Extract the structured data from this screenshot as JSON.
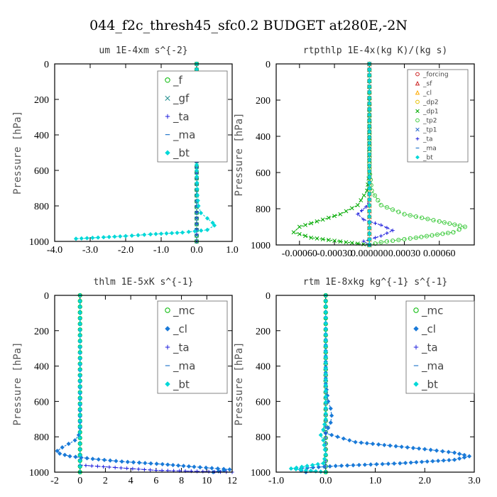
{
  "figure": {
    "suptitle": "044_f2c_thresh45_sfc0.2  BUDGET at280E,-2N"
  },
  "chart_data": [
    {
      "type": "line",
      "title": "um   1E-4xm s^{-2}",
      "xlabel": "",
      "ylabel": "Pressure [hPa]",
      "xlim": [
        -4.0,
        1.0
      ],
      "ylim": [
        1000,
        0
      ],
      "xticks": [
        "-4.0",
        "-3.0",
        "-2.0",
        "-1.0",
        "0.0",
        "1.0"
      ],
      "xtick_values": [
        -4,
        -3,
        -2,
        -1,
        0,
        1
      ],
      "yticks": [
        "0",
        "200",
        "400",
        "600",
        "800",
        "1000"
      ],
      "ytick_values": [
        0,
        200,
        400,
        600,
        800,
        1000
      ],
      "legend": "top-right",
      "legend_font": 15,
      "series": [
        {
          "name": "_f",
          "color": "#00b800",
          "marker": "circle",
          "x": [
            0,
            0
          ],
          "y": [
            0,
            1000
          ]
        },
        {
          "name": "_gf",
          "color": "#1a8a8a",
          "marker": "x",
          "x": [
            0,
            0
          ],
          "y": [
            0,
            1000
          ]
        },
        {
          "name": "_ta",
          "color": "#2020dd",
          "marker": "plus",
          "x": [
            0,
            0,
            0,
            0,
            0,
            0
          ],
          "y": [
            0,
            400,
            800,
            900,
            960,
            1000
          ]
        },
        {
          "name": "_ma",
          "color": "#2a7acc",
          "marker": "dash",
          "x": [
            0,
            0
          ],
          "y": [
            0,
            1000
          ]
        },
        {
          "name": "_bt",
          "color": "#00d8d8",
          "marker": "diamond",
          "x": [
            0.0,
            0.0,
            0.02,
            0.05,
            0.12,
            0.3,
            0.45,
            0.5,
            0.3,
            -0.4,
            -1.3,
            -2.0,
            -3.4
          ],
          "y": [
            0,
            600,
            740,
            800,
            840,
            870,
            895,
            910,
            935,
            950,
            960,
            970,
            985
          ]
        }
      ]
    },
    {
      "type": "line",
      "title": "rtpthlp   1E-4x(kg K)/(kg s)",
      "xlabel": "",
      "ylabel": "Pressure [hPa]",
      "xlim": [
        -0.0008,
        0.0009
      ],
      "ylim": [
        1000,
        0
      ],
      "xticks": [
        "-0.00060",
        "-0.00030",
        "0.000000",
        "0.00030",
        "0.00060"
      ],
      "xtick_values": [
        -0.0006,
        -0.0003,
        0.0,
        0.0003,
        0.0006
      ],
      "yticks": [
        "0",
        "200",
        "400",
        "600",
        "800",
        "1000"
      ],
      "ytick_values": [
        0,
        200,
        400,
        600,
        800,
        1000
      ],
      "legend": "top-right",
      "legend_font": 9,
      "series": [
        {
          "name": "_forcing",
          "color": "#cc2222",
          "marker": "circle",
          "x": [
            0,
            0
          ],
          "y": [
            0,
            1000
          ]
        },
        {
          "name": "_sf",
          "color": "#cc2222",
          "marker": "triangle",
          "x": [
            0,
            0
          ],
          "y": [
            0,
            1000
          ]
        },
        {
          "name": "_cl",
          "color": "#ffaa00",
          "marker": "triangle",
          "x": [
            0,
            0
          ],
          "y": [
            0,
            1000
          ]
        },
        {
          "name": "_dp2",
          "color": "#e6c000",
          "marker": "circle",
          "x": [
            0,
            0
          ],
          "y": [
            0,
            1000
          ]
        },
        {
          "name": "_dp1",
          "color": "#00aa00",
          "marker": "x",
          "x": [
            0.0,
            0.0,
            -2e-05,
            -0.0001,
            -0.00025,
            -0.00045,
            -0.0006,
            -0.00065,
            -0.0005,
            -0.0002,
            0.0
          ],
          "y": [
            0,
            600,
            700,
            780,
            830,
            870,
            900,
            930,
            960,
            985,
            1000
          ]
        },
        {
          "name": "_tp2",
          "color": "#44cc44",
          "marker": "circle",
          "x": [
            0.0,
            0.0,
            2e-05,
            0.0001,
            0.0003,
            0.0006,
            0.00082,
            0.00072,
            0.0004,
            0.0001,
            0.0
          ],
          "y": [
            0,
            580,
            700,
            780,
            830,
            870,
            900,
            930,
            960,
            985,
            1000
          ]
        },
        {
          "name": "_tp1",
          "color": "#2a6acc",
          "marker": "x",
          "x": [
            0,
            0
          ],
          "y": [
            0,
            1000
          ]
        },
        {
          "name": "_ta",
          "color": "#2020dd",
          "marker": "plus",
          "x": [
            0.0,
            0.0,
            -3e-05,
            -0.0001,
            -5e-05,
            0.0001,
            0.0002,
            0.0001,
            -5e-05,
            0.0
          ],
          "y": [
            0,
            750,
            790,
            830,
            860,
            890,
            920,
            950,
            980,
            1000
          ]
        },
        {
          "name": "_ma",
          "color": "#2a7acc",
          "marker": "dash",
          "x": [
            0,
            0
          ],
          "y": [
            0,
            1000
          ]
        },
        {
          "name": "_bt",
          "color": "#00d8d8",
          "marker": "diamond",
          "x": [
            0,
            0
          ],
          "y": [
            0,
            1000
          ]
        }
      ]
    },
    {
      "type": "line",
      "title": "thlm   1E-5xK s^{-1}",
      "xlabel": "",
      "ylabel": "Pressure [hPa]",
      "xlim": [
        -2,
        12
      ],
      "ylim": [
        1000,
        0
      ],
      "xticks": [
        "-2",
        "0",
        "2",
        "4",
        "6",
        "8",
        "10",
        "12"
      ],
      "xtick_values": [
        -2,
        0,
        2,
        4,
        6,
        8,
        10,
        12
      ],
      "yticks": [
        "0",
        "200",
        "400",
        "600",
        "800",
        "1000"
      ],
      "ytick_values": [
        0,
        200,
        400,
        600,
        800,
        1000
      ],
      "legend": "top-right",
      "legend_font": 15,
      "series": [
        {
          "name": "_mc",
          "color": "#00b800",
          "marker": "circle",
          "x": [
            0,
            0
          ],
          "y": [
            0,
            1000
          ]
        },
        {
          "name": "_cl",
          "color": "#1a7ad8",
          "marker": "diamond",
          "x": [
            0.0,
            0.0,
            -0.1,
            -0.4,
            -0.9,
            -1.4,
            -1.8,
            -1.6,
            -0.8,
            1.0,
            3.3,
            6.5,
            9.0,
            11.8,
            10.5
          ],
          "y": [
            0,
            750,
            790,
            820,
            840,
            860,
            880,
            895,
            910,
            925,
            940,
            955,
            970,
            985,
            1000
          ]
        },
        {
          "name": "_ta",
          "color": "#2020dd",
          "marker": "plus",
          "x": [
            0,
            0,
            0,
            6,
            12
          ],
          "y": [
            0,
            900,
            960,
            990,
            1000
          ]
        },
        {
          "name": "_ma",
          "color": "#2a7acc",
          "marker": "dash",
          "x": [
            0,
            0
          ],
          "y": [
            0,
            1000
          ]
        },
        {
          "name": "_bt",
          "color": "#00d8d8",
          "marker": "diamond",
          "x": [
            0,
            0
          ],
          "y": [
            0,
            1000
          ]
        }
      ]
    },
    {
      "type": "line",
      "title": "rtm   1E-8xkg kg^{-1} s^{-1}",
      "xlabel": "",
      "ylabel": "Pressure [hPa]",
      "xlim": [
        -1.0,
        3.0
      ],
      "ylim": [
        1000,
        0
      ],
      "xticks": [
        "-1.0",
        "0.0",
        "1.0",
        "2.0",
        "3.0"
      ],
      "xtick_values": [
        -1,
        0,
        1,
        2,
        3
      ],
      "yticks": [
        "0",
        "200",
        "400",
        "600",
        "800",
        "1000"
      ],
      "ytick_values": [
        0,
        200,
        400,
        600,
        800,
        1000
      ],
      "legend": "top-right",
      "legend_font": 15,
      "series": [
        {
          "name": "_mc",
          "color": "#00b800",
          "marker": "circle",
          "x": [
            0,
            0
          ],
          "y": [
            0,
            1000
          ]
        },
        {
          "name": "_cl",
          "color": "#1a7ad8",
          "marker": "diamond",
          "x": [
            0.0,
            0.0,
            0.05,
            0.1,
            0.12,
            0.1,
            0.05,
            0.0,
            0.6,
            1.3,
            2.0,
            2.6,
            2.9,
            2.6,
            1.5,
            0.2,
            -0.6,
            -0.4
          ],
          "y": [
            0,
            500,
            600,
            640,
            680,
            720,
            750,
            780,
            830,
            850,
            870,
            890,
            910,
            930,
            950,
            965,
            980,
            1000
          ]
        },
        {
          "name": "_ta",
          "color": "#2020dd",
          "marker": "plus",
          "x": [
            0,
            0
          ],
          "y": [
            0,
            1000
          ]
        },
        {
          "name": "_ma",
          "color": "#2a7acc",
          "marker": "dash",
          "x": [
            0,
            0
          ],
          "y": [
            0,
            1000
          ]
        },
        {
          "name": "_bt",
          "color": "#00d8d8",
          "marker": "diamond",
          "x": [
            0.0,
            0.0,
            -0.05,
            -0.1,
            -0.05,
            0.0,
            -0.05,
            -0.7,
            -0.4,
            0.0
          ],
          "y": [
            0,
            700,
            760,
            790,
            820,
            900,
            950,
            980,
            990,
            1000
          ]
        }
      ]
    }
  ]
}
